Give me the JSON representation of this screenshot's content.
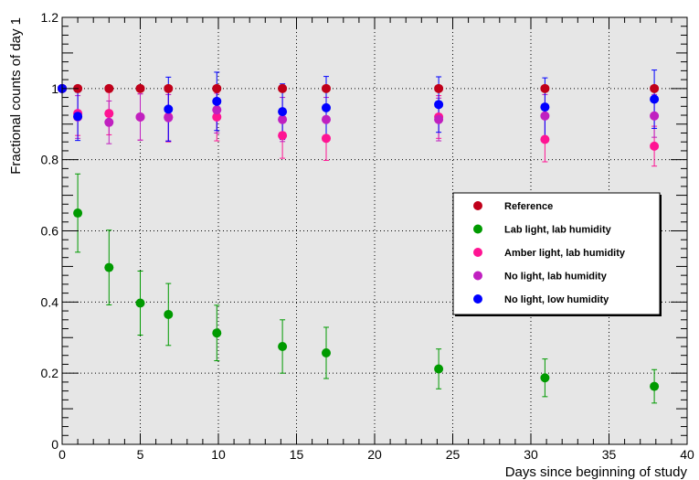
{
  "chart_data": {
    "type": "scatter",
    "title": "",
    "xlabel": "Days since beginning of study",
    "ylabel": "Fractional counts of day 1",
    "xlim": [
      0,
      40
    ],
    "ylim": [
      0,
      1.2
    ],
    "x_ticks": [
      "0",
      "5",
      "10",
      "15",
      "20",
      "25",
      "30",
      "35",
      "40"
    ],
    "y_ticks": [
      "0",
      "0.2",
      "0.4",
      "0.6",
      "0.8",
      "1",
      "1.2"
    ],
    "grid": true,
    "legend_position": "right",
    "series": [
      {
        "name": "Reference",
        "color": "#c0001a",
        "points": [
          {
            "x": 0,
            "y": 1.0,
            "err": 0
          },
          {
            "x": 1,
            "y": 1.0,
            "err": 0
          },
          {
            "x": 3,
            "y": 1.0,
            "err": 0
          },
          {
            "x": 5,
            "y": 1.0,
            "err": 0
          },
          {
            "x": 6.8,
            "y": 1.0,
            "err": 0
          },
          {
            "x": 9.9,
            "y": 1.0,
            "err": 0
          },
          {
            "x": 14.1,
            "y": 1.0,
            "err": 0
          },
          {
            "x": 16.9,
            "y": 1.0,
            "err": 0
          },
          {
            "x": 24.1,
            "y": 1.0,
            "err": 0
          },
          {
            "x": 30.9,
            "y": 1.0,
            "err": 0
          },
          {
            "x": 37.9,
            "y": 1.0,
            "err": 0
          }
        ]
      },
      {
        "name": "Lab light, lab humidity",
        "color": "#009a00",
        "points": [
          {
            "x": 0,
            "y": 1.0,
            "err": 0
          },
          {
            "x": 1,
            "y": 0.65,
            "err": 0.11
          },
          {
            "x": 3,
            "y": 0.497,
            "err": 0.105
          },
          {
            "x": 5,
            "y": 0.397,
            "err": 0.09
          },
          {
            "x": 6.8,
            "y": 0.365,
            "err": 0.087
          },
          {
            "x": 9.9,
            "y": 0.313,
            "err": 0.078
          },
          {
            "x": 14.1,
            "y": 0.275,
            "err": 0.075
          },
          {
            "x": 16.9,
            "y": 0.257,
            "err": 0.072
          },
          {
            "x": 24.1,
            "y": 0.212,
            "err": 0.056
          },
          {
            "x": 30.9,
            "y": 0.187,
            "err": 0.053
          },
          {
            "x": 37.9,
            "y": 0.163,
            "err": 0.047
          }
        ]
      },
      {
        "name": "Amber light, lab humidity",
        "color": "#ff1493",
        "points": [
          {
            "x": 0,
            "y": 1.0,
            "err": 0
          },
          {
            "x": 1,
            "y": 0.93,
            "err": 0.062
          },
          {
            "x": 3,
            "y": 0.93,
            "err": 0.06
          },
          {
            "x": 5,
            "y": 0.92,
            "err": 0.065
          },
          {
            "x": 6.8,
            "y": 0.92,
            "err": 0.07
          },
          {
            "x": 9.9,
            "y": 0.92,
            "err": 0.067
          },
          {
            "x": 14.1,
            "y": 0.868,
            "err": 0.064
          },
          {
            "x": 16.9,
            "y": 0.86,
            "err": 0.062
          },
          {
            "x": 24.1,
            "y": 0.92,
            "err": 0.06
          },
          {
            "x": 30.9,
            "y": 0.857,
            "err": 0.063
          },
          {
            "x": 37.9,
            "y": 0.838,
            "err": 0.056
          }
        ]
      },
      {
        "name": "No light, lab humidity",
        "color": "#c020c0",
        "points": [
          {
            "x": 0,
            "y": 1.0,
            "err": 0
          },
          {
            "x": 1,
            "y": 0.92,
            "err": 0.06
          },
          {
            "x": 3,
            "y": 0.905,
            "err": 0.06
          },
          {
            "x": 5,
            "y": 0.92,
            "err": 0.065
          },
          {
            "x": 6.8,
            "y": 0.918,
            "err": 0.065
          },
          {
            "x": 9.9,
            "y": 0.94,
            "err": 0.065
          },
          {
            "x": 14.1,
            "y": 0.913,
            "err": 0.062
          },
          {
            "x": 16.9,
            "y": 0.913,
            "err": 0.062
          },
          {
            "x": 24.1,
            "y": 0.913,
            "err": 0.06
          },
          {
            "x": 30.9,
            "y": 0.923,
            "err": 0.06
          },
          {
            "x": 37.9,
            "y": 0.923,
            "err": 0.06
          }
        ]
      },
      {
        "name": "No light, low humidity",
        "color": "#0000ff",
        "points": [
          {
            "x": 0,
            "y": 1.0,
            "err": 0
          },
          {
            "x": 1,
            "y": 0.922,
            "err": 0.068
          },
          {
            "x": 6.8,
            "y": 0.942,
            "err": 0.09
          },
          {
            "x": 9.9,
            "y": 0.964,
            "err": 0.082
          },
          {
            "x": 14.1,
            "y": 0.935,
            "err": 0.078
          },
          {
            "x": 16.9,
            "y": 0.946,
            "err": 0.088
          },
          {
            "x": 24.1,
            "y": 0.955,
            "err": 0.078
          },
          {
            "x": 30.9,
            "y": 0.948,
            "err": 0.082
          },
          {
            "x": 37.9,
            "y": 0.97,
            "err": 0.082
          }
        ]
      }
    ]
  }
}
